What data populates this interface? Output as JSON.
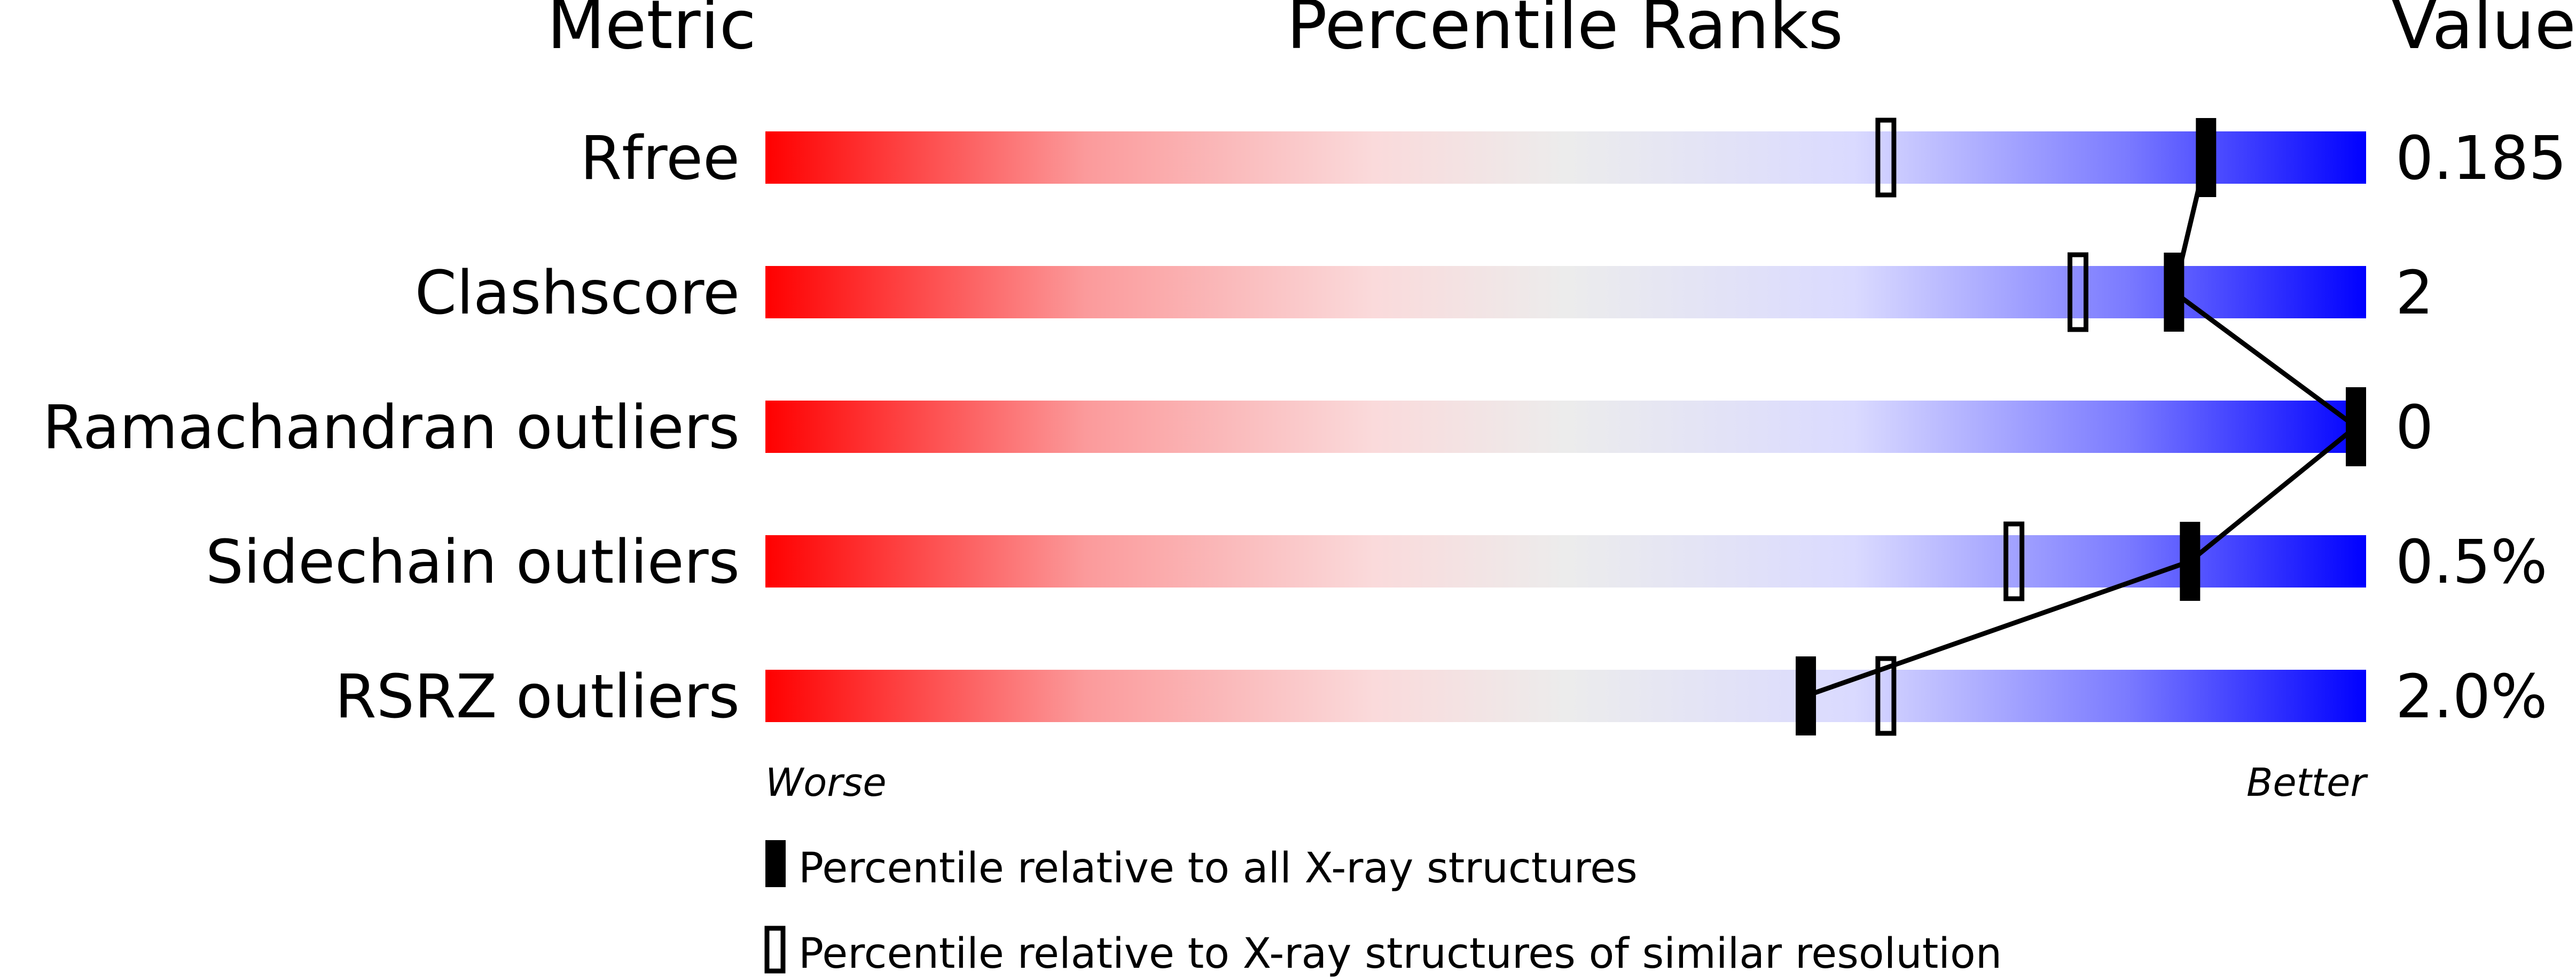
{
  "chart_data": {
    "type": "percentile-slider",
    "headers": {
      "metric": "Metric",
      "ranks": "Percentile Ranks",
      "value": "Value"
    },
    "xlim": [
      0,
      100
    ],
    "metrics": [
      {
        "name": "Rfree",
        "value": "0.185",
        "percentile_all": 90,
        "percentile_similar": 70
      },
      {
        "name": "Clashscore",
        "value": "2",
        "percentile_all": 88,
        "percentile_similar": 82
      },
      {
        "name": "Ramachandran outliers",
        "value": "0",
        "percentile_all": 100,
        "percentile_similar": null
      },
      {
        "name": "Sidechain outliers",
        "value": "0.5%",
        "percentile_all": 89,
        "percentile_similar": 78
      },
      {
        "name": "RSRZ outliers",
        "value": "2.0%",
        "percentile_all": 65,
        "percentile_similar": 70
      }
    ],
    "axis_labels": {
      "left": "Worse",
      "right": "Better"
    },
    "legend": [
      {
        "marker": "filled",
        "label": "Percentile relative to all X-ray structures"
      },
      {
        "marker": "open",
        "label": "Percentile relative to X-ray structures of similar resolution"
      }
    ],
    "colors": {
      "worse": "#ff0000",
      "middle": "#f0f0f0",
      "better": "#0000ff",
      "marker": "#000000"
    }
  }
}
